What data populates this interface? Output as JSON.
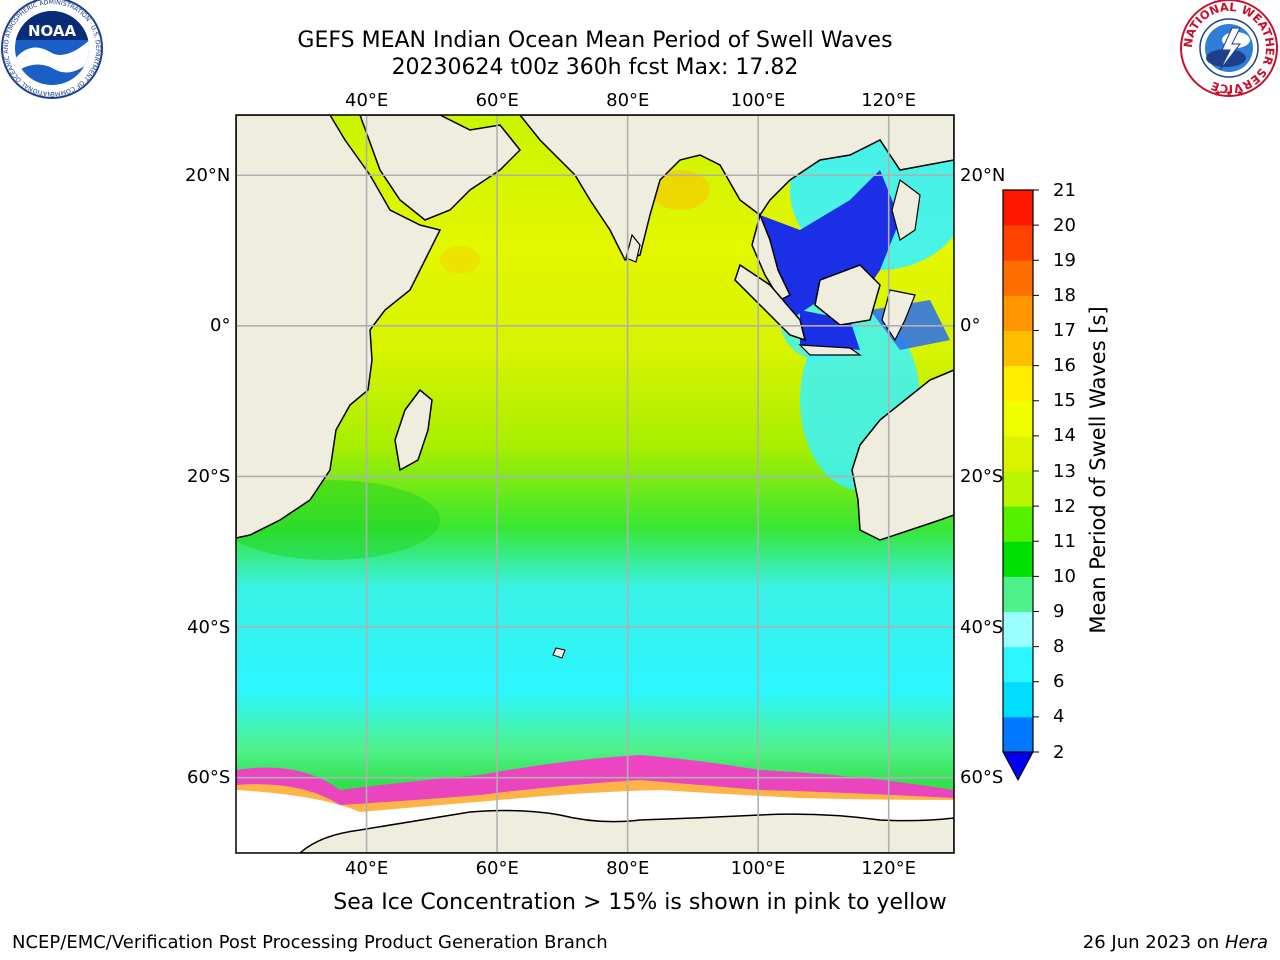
{
  "title": {
    "line1": "GEFS MEAN Indian Ocean Mean Period of Swell Waves",
    "line2": "20230624 t00z 360h fcst   Max: 17.82"
  },
  "logos": {
    "left_text": "NOAA",
    "left_ring": "NATIONAL OCEANIC AND ATMOSPHERIC ADMINISTRATION · U.S. DEPARTMENT OF COMMERCE",
    "right_ring": "NATIONAL WEATHER SERVICE"
  },
  "map": {
    "lon_ticks": [
      {
        "value": 40,
        "label": "40°E"
      },
      {
        "value": 60,
        "label": "60°E"
      },
      {
        "value": 80,
        "label": "80°E"
      },
      {
        "value": 100,
        "label": "100°E"
      },
      {
        "value": 120,
        "label": "120°E"
      }
    ],
    "lat_ticks": [
      {
        "value": 20,
        "label": "20°N"
      },
      {
        "value": 0,
        "label": "0°"
      },
      {
        "value": -20,
        "label": "20°S"
      },
      {
        "value": -40,
        "label": "40°S"
      },
      {
        "value": -60,
        "label": "60°S"
      }
    ],
    "lon_range": [
      20,
      130
    ],
    "lat_range": [
      -70,
      28
    ],
    "grid": true,
    "land_color": "#efedde",
    "grid_color": "#b0b0b0"
  },
  "colorbar": {
    "title": "Mean Period of Swell Waves [s]",
    "ticks": [
      "2",
      "4",
      "6",
      "8",
      "9",
      "10",
      "11",
      "12",
      "13",
      "14",
      "15",
      "16",
      "17",
      "18",
      "19",
      "20",
      "21"
    ],
    "colors": [
      "#0078ff",
      "#00ddff",
      "#2cf6ff",
      "#9cffff",
      "#4ff28a",
      "#00e000",
      "#55f000",
      "#b9f500",
      "#daf400",
      "#f0ff00",
      "#ffee00",
      "#ffbf00",
      "#ff9500",
      "#ff6e00",
      "#ff4200",
      "#ff1600"
    ],
    "extend_color": "#0000ee"
  },
  "caption": "Sea Ice Concentration > 15% is shown in pink to yellow",
  "footer": {
    "left": "NCEP/EMC/Verification Post Processing Product Generation Branch",
    "right_date": "26 Jun 2023 on ",
    "right_host": "Hera"
  }
}
